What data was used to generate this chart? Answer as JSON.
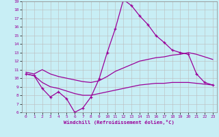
{
  "xlabel": "Windchill (Refroidissement éolien,°C)",
  "x_hours": [
    0,
    1,
    2,
    3,
    4,
    5,
    6,
    7,
    8,
    9,
    10,
    11,
    12,
    13,
    14,
    15,
    16,
    17,
    18,
    19,
    20,
    21,
    22,
    23
  ],
  "line1_y": [
    10.5,
    10.3,
    8.8,
    7.8,
    8.4,
    7.6,
    6.0,
    6.5,
    7.8,
    9.9,
    13.0,
    15.8,
    19.2,
    18.5,
    17.3,
    16.3,
    15.0,
    14.2,
    13.3,
    13.0,
    12.8,
    10.5,
    9.5,
    9.2
  ],
  "line2_y": [
    10.7,
    10.5,
    11.0,
    10.5,
    10.2,
    10.0,
    9.8,
    9.6,
    9.5,
    9.7,
    10.2,
    10.8,
    11.2,
    11.6,
    12.0,
    12.2,
    12.4,
    12.5,
    12.7,
    12.8,
    13.0,
    12.8,
    12.5,
    12.2
  ],
  "line3_y": [
    10.5,
    10.3,
    9.5,
    9.0,
    8.8,
    8.5,
    8.2,
    8.0,
    8.0,
    8.2,
    8.4,
    8.6,
    8.8,
    9.0,
    9.2,
    9.3,
    9.4,
    9.4,
    9.5,
    9.5,
    9.5,
    9.4,
    9.3,
    9.2
  ],
  "line_color": "#990099",
  "bg_color": "#c8eef5",
  "grid_color": "#bbbbbb",
  "xlim": [
    -0.5,
    23.5
  ],
  "ylim": [
    6,
    19
  ],
  "yticks": [
    6,
    7,
    8,
    9,
    10,
    11,
    12,
    13,
    14,
    15,
    16,
    17,
    18,
    19
  ],
  "xticks": [
    0,
    1,
    2,
    3,
    4,
    5,
    6,
    7,
    8,
    9,
    10,
    11,
    12,
    13,
    14,
    15,
    16,
    17,
    18,
    19,
    20,
    21,
    22,
    23
  ]
}
